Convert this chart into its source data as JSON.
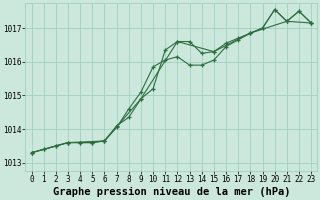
{
  "background_color": "#cce8dd",
  "plot_bg_color": "#cce8dd",
  "grid_color": "#99ccbb",
  "line_color": "#2d6e3e",
  "title": "Graphe pression niveau de la mer (hPa)",
  "xlim": [
    -0.5,
    23.5
  ],
  "ylim": [
    1012.75,
    1017.75
  ],
  "yticks": [
    1013,
    1014,
    1015,
    1016,
    1017
  ],
  "xticks": [
    0,
    1,
    2,
    3,
    4,
    5,
    6,
    7,
    8,
    9,
    10,
    11,
    12,
    13,
    14,
    15,
    16,
    17,
    18,
    19,
    20,
    21,
    22,
    23
  ],
  "line1_x": [
    0,
    1,
    2,
    3,
    4,
    5,
    6,
    7,
    8,
    9,
    10,
    11,
    12,
    13,
    14,
    15,
    16,
    17,
    18,
    19,
    20,
    21,
    22,
    23
  ],
  "line1_y": [
    1013.3,
    1013.4,
    1013.5,
    1013.6,
    1013.6,
    1013.6,
    1013.65,
    1014.1,
    1014.35,
    1014.9,
    1015.2,
    1016.35,
    1016.6,
    1016.6,
    1016.25,
    1016.3,
    1016.55,
    1016.7,
    1016.85,
    1017.0,
    1017.55,
    1017.2,
    1017.5,
    1017.15
  ],
  "line2_x": [
    0,
    1,
    2,
    3,
    4,
    5,
    6,
    7,
    8,
    9,
    10,
    11,
    12,
    13,
    14,
    15,
    16,
    17,
    18,
    19,
    20,
    21,
    22,
    23
  ],
  "line2_y": [
    1013.3,
    1013.4,
    1013.5,
    1013.6,
    1013.6,
    1013.6,
    1013.65,
    1014.05,
    1014.6,
    1015.1,
    1015.85,
    1016.05,
    1016.15,
    1015.9,
    1015.9,
    1016.05,
    1016.45,
    1016.65,
    1016.85,
    1017.0,
    1017.55,
    1017.2,
    1017.5,
    1017.15
  ],
  "line3_x": [
    0,
    3,
    6,
    9,
    12,
    15,
    18,
    21,
    23
  ],
  "line3_y": [
    1013.3,
    1013.6,
    1013.65,
    1014.9,
    1016.6,
    1016.3,
    1016.85,
    1017.2,
    1017.15
  ],
  "marker": "+",
  "markersize": 3.5,
  "linewidth": 0.8,
  "title_fontsize": 7.5,
  "tick_fontsize": 5.5
}
